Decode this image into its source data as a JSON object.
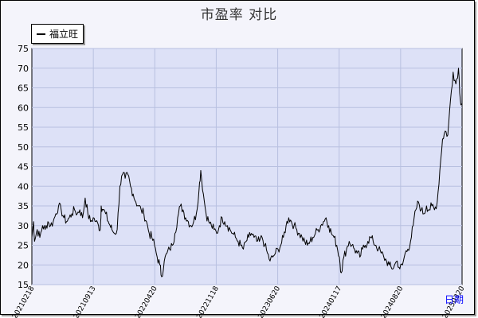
{
  "chart_data": {
    "type": "line",
    "title": "市盈率  对比",
    "xlabel": "日期",
    "ylabel": "",
    "ylim": [
      15,
      75
    ],
    "yticks": [
      15,
      20,
      25,
      30,
      35,
      40,
      45,
      50,
      55,
      60,
      65,
      70,
      75
    ],
    "xticks": [
      "20210218",
      "20210913",
      "20220420",
      "20221118",
      "20230620",
      "20240117",
      "20240820",
      "20250320"
    ],
    "legend": {
      "placement": "top-left"
    },
    "grid": true,
    "series": [
      {
        "name": "福立旺",
        "color": "#000000",
        "points": [
          [
            0,
            27
          ],
          [
            2,
            31
          ],
          [
            3,
            26
          ],
          [
            6,
            29
          ],
          [
            9,
            27
          ],
          [
            12,
            30
          ],
          [
            15,
            29
          ],
          [
            18,
            31
          ],
          [
            21,
            30
          ],
          [
            24,
            31
          ],
          [
            27,
            33
          ],
          [
            30,
            35
          ],
          [
            33,
            34
          ],
          [
            36,
            32
          ],
          [
            39,
            31
          ],
          [
            42,
            32
          ],
          [
            45,
            33
          ],
          [
            48,
            34
          ],
          [
            51,
            33
          ],
          [
            54,
            34
          ],
          [
            57,
            32
          ],
          [
            60,
            37
          ],
          [
            63,
            33
          ],
          [
            66,
            31
          ],
          [
            69,
            32
          ],
          [
            72,
            31
          ],
          [
            75,
            30
          ],
          [
            77,
            29
          ],
          [
            78,
            35
          ],
          [
            80,
            34
          ],
          [
            83,
            33
          ],
          [
            86,
            31
          ],
          [
            88,
            30
          ],
          [
            90,
            29
          ],
          [
            93,
            28
          ],
          [
            96,
            29
          ],
          [
            99,
            40
          ],
          [
            102,
            43
          ],
          [
            105,
            42
          ],
          [
            108,
            43
          ],
          [
            111,
            40
          ],
          [
            114,
            38
          ],
          [
            117,
            36
          ],
          [
            120,
            35
          ],
          [
            123,
            34
          ],
          [
            126,
            33
          ],
          [
            129,
            31
          ],
          [
            132,
            28
          ],
          [
            135,
            27
          ],
          [
            138,
            25
          ],
          [
            141,
            22
          ],
          [
            144,
            20
          ],
          [
            146,
            17
          ],
          [
            149,
            21
          ],
          [
            152,
            23
          ],
          [
            155,
            24
          ],
          [
            158,
            25
          ],
          [
            161,
            28
          ],
          [
            164,
            32
          ],
          [
            167,
            35
          ],
          [
            170,
            34
          ],
          [
            173,
            32
          ],
          [
            176,
            31
          ],
          [
            179,
            30
          ],
          [
            182,
            31
          ],
          [
            185,
            33
          ],
          [
            188,
            39
          ],
          [
            190,
            44
          ],
          [
            193,
            38
          ],
          [
            196,
            33
          ],
          [
            199,
            31
          ],
          [
            202,
            30
          ],
          [
            205,
            29
          ],
          [
            208,
            28
          ],
          [
            211,
            30
          ],
          [
            214,
            32
          ],
          [
            217,
            31
          ],
          [
            220,
            30
          ],
          [
            223,
            29
          ],
          [
            226,
            28
          ],
          [
            229,
            27
          ],
          [
            232,
            26
          ],
          [
            235,
            25
          ],
          [
            238,
            24
          ],
          [
            241,
            26
          ],
          [
            244,
            27
          ],
          [
            247,
            28
          ],
          [
            250,
            27
          ],
          [
            253,
            26
          ],
          [
            256,
            26
          ],
          [
            259,
            27
          ],
          [
            262,
            25
          ],
          [
            265,
            23
          ],
          [
            268,
            21
          ],
          [
            271,
            22
          ],
          [
            274,
            23
          ],
          [
            277,
            24
          ],
          [
            280,
            25
          ],
          [
            283,
            27
          ],
          [
            286,
            30
          ],
          [
            289,
            32
          ],
          [
            292,
            31
          ],
          [
            295,
            30
          ],
          [
            298,
            29
          ],
          [
            301,
            28
          ],
          [
            304,
            27
          ],
          [
            307,
            26
          ],
          [
            310,
            25
          ],
          [
            313,
            26
          ],
          [
            316,
            27
          ],
          [
            319,
            28
          ],
          [
            322,
            29
          ],
          [
            325,
            30
          ],
          [
            328,
            31
          ],
          [
            331,
            32
          ],
          [
            334,
            30
          ],
          [
            337,
            28
          ],
          [
            340,
            27
          ],
          [
            343,
            25
          ],
          [
            346,
            22
          ],
          [
            348,
            18
          ],
          [
            351,
            22
          ],
          [
            354,
            24
          ],
          [
            357,
            26
          ],
          [
            360,
            25
          ],
          [
            363,
            24
          ],
          [
            366,
            23
          ],
          [
            369,
            22
          ],
          [
            372,
            24
          ],
          [
            375,
            25
          ],
          [
            378,
            26
          ],
          [
            381,
            27
          ],
          [
            384,
            26
          ],
          [
            387,
            25
          ],
          [
            390,
            24
          ],
          [
            393,
            23
          ],
          [
            396,
            22
          ],
          [
            399,
            21
          ],
          [
            402,
            20
          ],
          [
            405,
            19
          ],
          [
            408,
            20
          ],
          [
            411,
            21
          ],
          [
            414,
            19
          ],
          [
            417,
            20
          ],
          [
            420,
            23
          ],
          [
            423,
            24
          ],
          [
            426,
            26
          ],
          [
            429,
            30
          ],
          [
            432,
            34
          ],
          [
            435,
            36
          ],
          [
            438,
            34
          ],
          [
            441,
            33
          ],
          [
            444,
            35
          ],
          [
            447,
            34
          ],
          [
            450,
            35
          ],
          [
            453,
            34
          ],
          [
            456,
            36
          ],
          [
            459,
            44
          ],
          [
            462,
            52
          ],
          [
            465,
            54
          ],
          [
            468,
            53
          ],
          [
            471,
            62
          ],
          [
            474,
            69
          ],
          [
            477,
            66
          ],
          [
            480,
            70
          ],
          [
            482,
            62
          ],
          [
            484,
            61
          ]
        ]
      }
    ]
  }
}
